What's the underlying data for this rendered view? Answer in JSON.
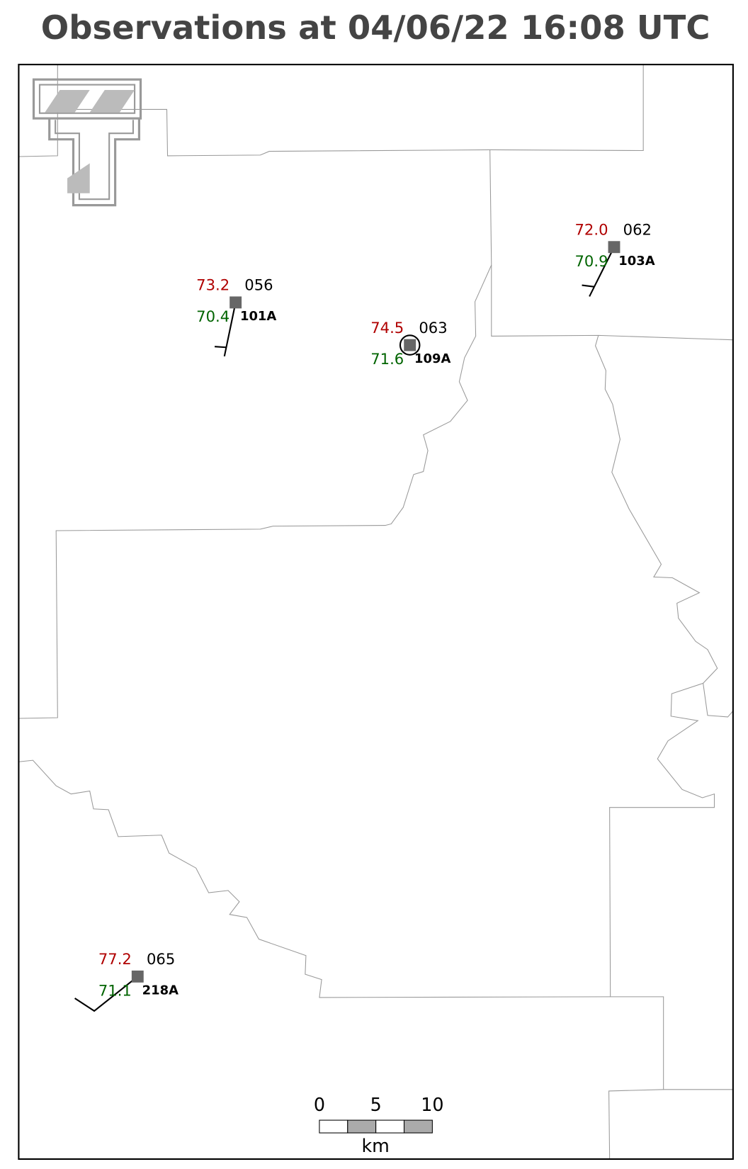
{
  "title": "Observations at 04/06/22 16:08 UTC",
  "stations": [
    {
      "temperature": "73.2",
      "dewpoint": "70.4",
      "pressure": "056",
      "id": "101A"
    },
    {
      "temperature": "74.5",
      "dewpoint": "71.6",
      "pressure": "063",
      "id": "109A"
    },
    {
      "temperature": "72.0",
      "dewpoint": "70.9",
      "pressure": "062",
      "id": "103A"
    },
    {
      "temperature": "77.2",
      "dewpoint": "71.1",
      "pressure": "065",
      "id": "218A"
    }
  ],
  "scale_bar": {
    "labels": [
      "0",
      "5",
      "10"
    ],
    "unit": "km"
  }
}
